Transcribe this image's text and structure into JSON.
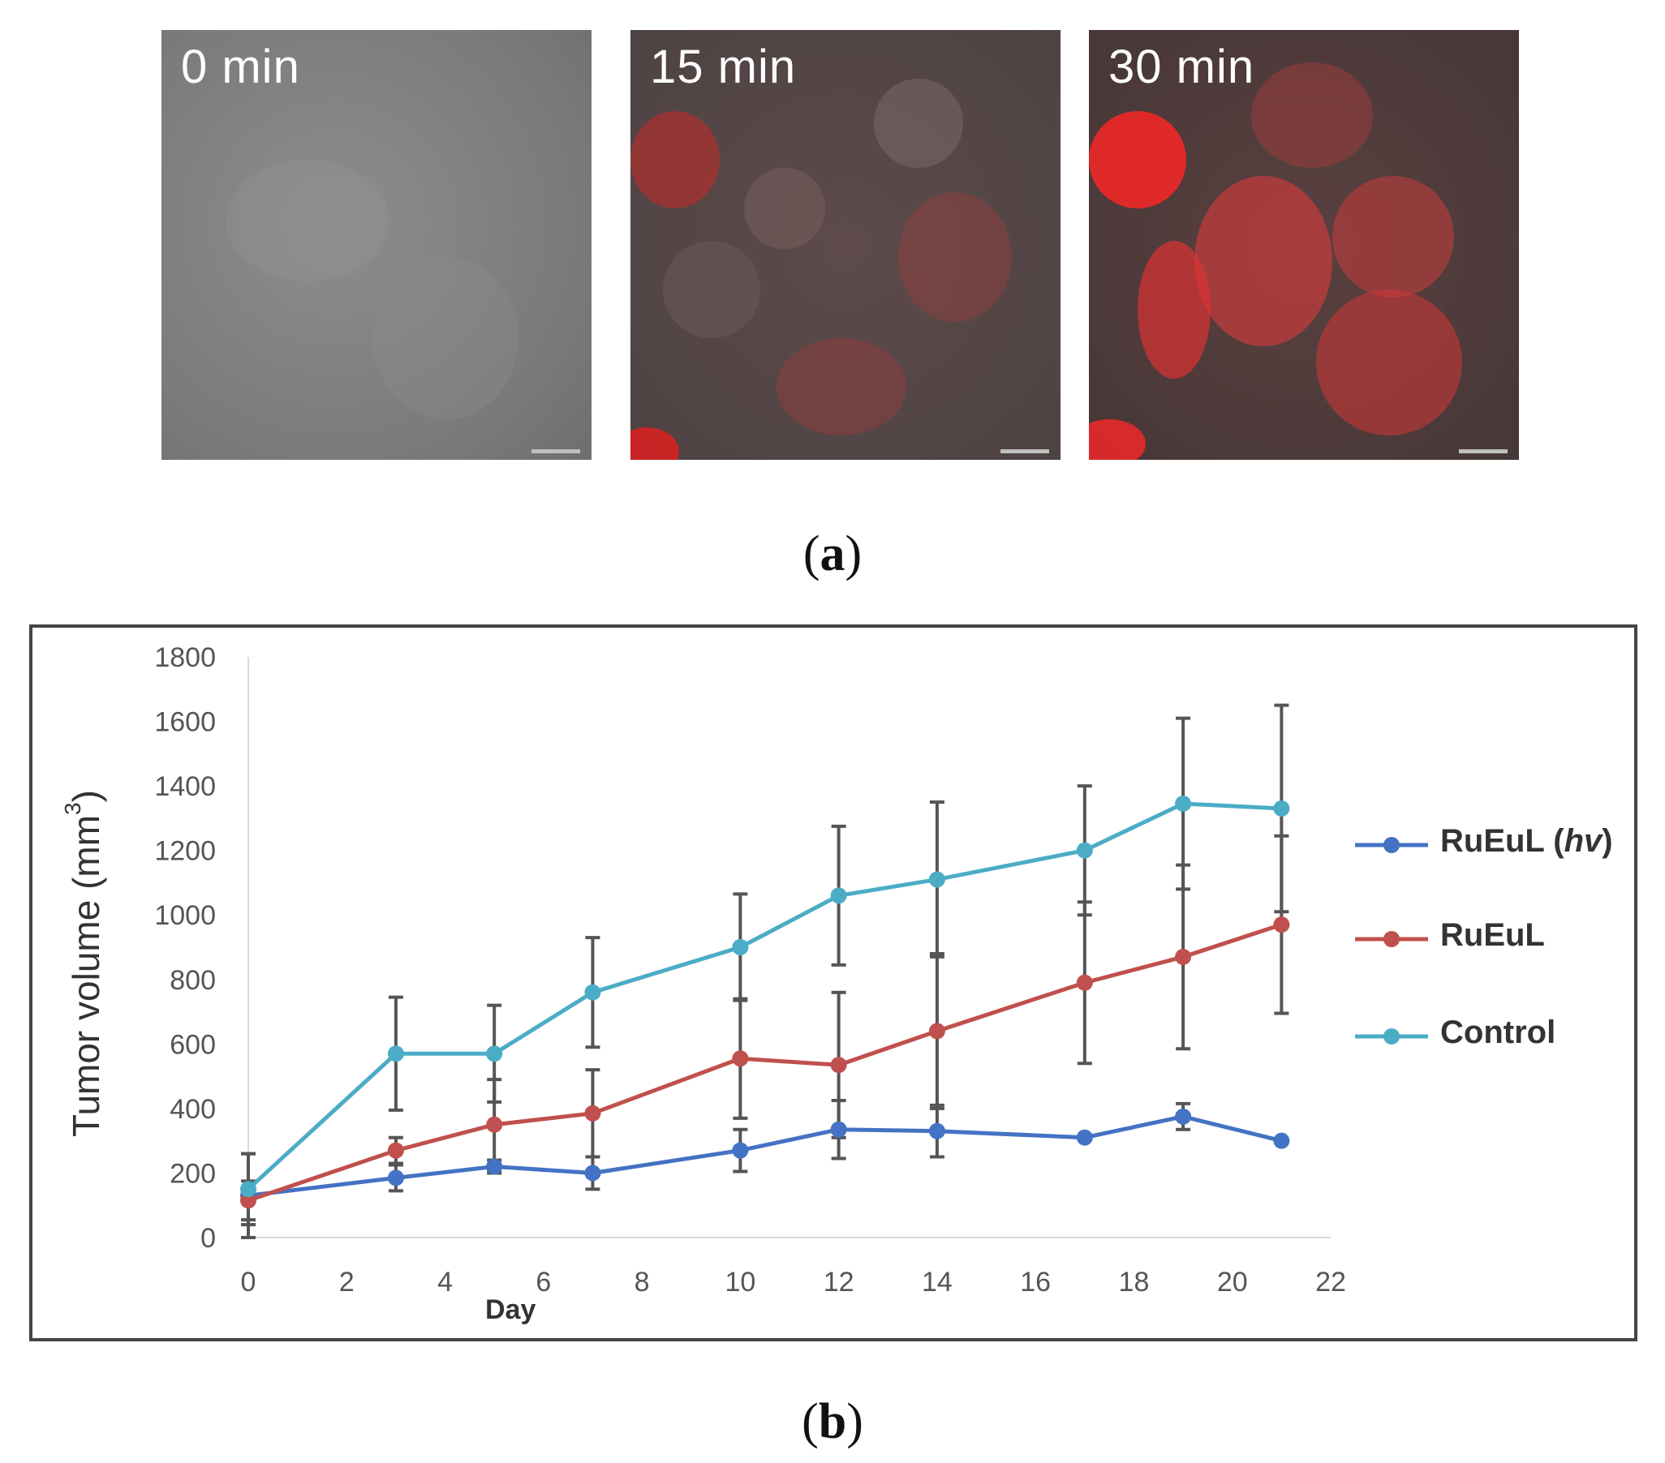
{
  "panel_a": {
    "caption": "a",
    "images": [
      {
        "label": "0 min"
      },
      {
        "label": "15 min"
      },
      {
        "label": "30 min"
      }
    ]
  },
  "panel_b": {
    "caption": "b"
  },
  "colors": {
    "rueul_hv": "#4472C4",
    "rueul": "#C0504D",
    "control": "#4BACC6",
    "error_bar": "#555555"
  },
  "chart_data": {
    "type": "line",
    "title": "",
    "xlabel": "Day",
    "ylabel": "Tumor volume (mm",
    "ylabel_sup": "3",
    "ylabel_close": ")",
    "xlim": [
      0,
      22
    ],
    "ylim": [
      0,
      1800
    ],
    "xticks": [
      0,
      2,
      4,
      6,
      8,
      10,
      12,
      14,
      16,
      18,
      20,
      22
    ],
    "yticks": [
      0,
      200,
      400,
      600,
      800,
      1000,
      1200,
      1400,
      1600,
      1800
    ],
    "grid": false,
    "legend_position": "right",
    "x": [
      0,
      3,
      5,
      7,
      10,
      12,
      14,
      17,
      19,
      21
    ],
    "series": [
      {
        "name": "RuEuL (hv)",
        "name_main": "RuEuL (",
        "name_italic": "hv",
        "name_close": ")",
        "color_key": "rueul_hv",
        "values": [
          130,
          185,
          220,
          200,
          270,
          335,
          330,
          310,
          375,
          300
        ],
        "errors": [
          130,
          40,
          20,
          50,
          65,
          90,
          80,
          0,
          40,
          0
        ]
      },
      {
        "name": "RuEuL",
        "color_key": "rueul",
        "values": [
          115,
          270,
          350,
          385,
          555,
          535,
          640,
          790,
          870,
          970
        ],
        "errors": [
          60,
          40,
          140,
          135,
          185,
          225,
          240,
          250,
          285,
          275
        ]
      },
      {
        "name": "Control",
        "color_key": "control",
        "values": [
          150,
          570,
          570,
          760,
          900,
          1060,
          1110,
          1200,
          1345,
          1330
        ],
        "errors": [
          110,
          175,
          150,
          170,
          165,
          215,
          240,
          200,
          265,
          320
        ]
      }
    ]
  }
}
